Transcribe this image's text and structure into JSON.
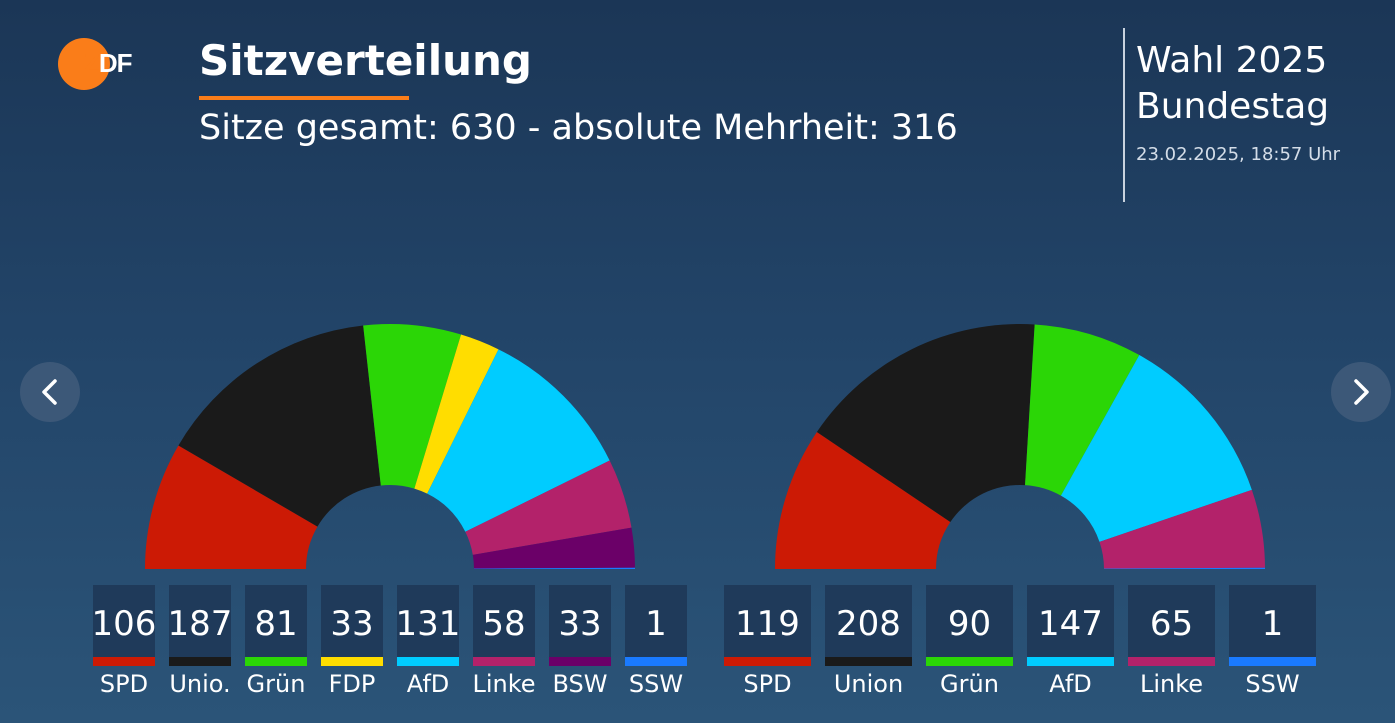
{
  "header": {
    "logo_text": "ZDF",
    "title": "Sitzverteilung",
    "subtitle": "Sitze gesamt: 630 - absolute Mehrheit: 316",
    "election_line1": "Wahl 2025",
    "election_line2": "Bundestag",
    "datetime": "23.02.2025, 18:57 Uhr"
  },
  "nav": {
    "prev_icon": "chevron-left-icon",
    "next_icon": "chevron-right-icon"
  },
  "colors": {
    "SPD": "#cc1a05",
    "Union": "#1a1a1a",
    "Grün": "#2bd606",
    "FDP": "#ffdd00",
    "AfD": "#00ccff",
    "Linke": "#b3226a",
    "BSW": "#6b0068",
    "SSW": "#1a7aff",
    "accent": "#fa7d19"
  },
  "chart_data": [
    {
      "type": "pie",
      "subtype": "semicircle-parliament",
      "parties": [
        "SPD",
        "Unio.",
        "Grün",
        "FDP",
        "AfD",
        "Linke",
        "BSW",
        "SSW"
      ],
      "color_keys": [
        "SPD",
        "Union",
        "Grün",
        "FDP",
        "AfD",
        "Linke",
        "BSW",
        "SSW"
      ],
      "values": [
        106,
        187,
        81,
        33,
        131,
        58,
        33,
        1
      ]
    },
    {
      "type": "pie",
      "subtype": "semicircle-parliament",
      "parties": [
        "SPD",
        "Union",
        "Grün",
        "AfD",
        "Linke",
        "SSW"
      ],
      "color_keys": [
        "SPD",
        "Union",
        "Grün",
        "AfD",
        "Linke",
        "SSW"
      ],
      "values": [
        119,
        208,
        90,
        147,
        65,
        1
      ]
    }
  ]
}
